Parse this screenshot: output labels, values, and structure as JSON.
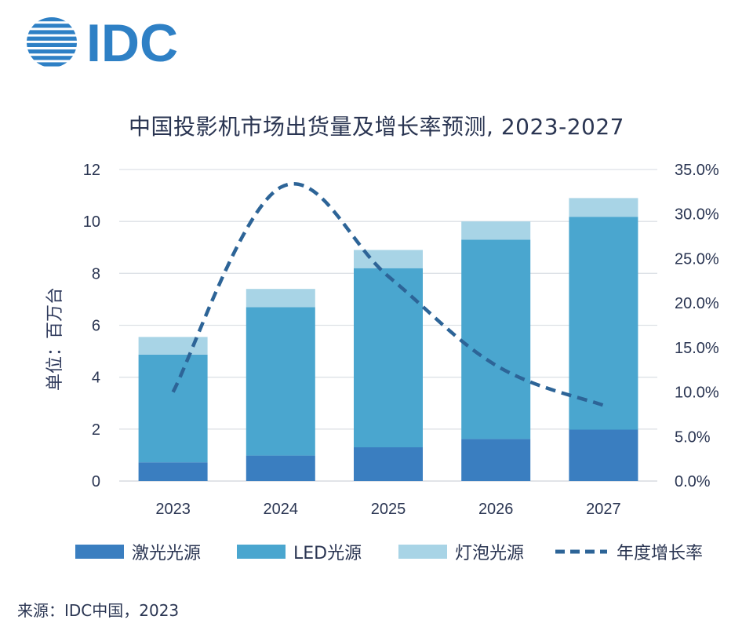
{
  "logo": {
    "text": "IDC",
    "icon": "globe-icon",
    "color": "#2e80c5"
  },
  "chart_data": {
    "type": "bar",
    "title": "中国投影机市场出货量及增长率预测, 2023-2027",
    "ylabel": "单位：百万台",
    "ylim": [
      0,
      12
    ],
    "yticks": [
      "0",
      "2",
      "4",
      "6",
      "8",
      "10",
      "12"
    ],
    "y2lim": [
      0,
      35
    ],
    "y2ticks": [
      "0.0%",
      "5.0%",
      "10.0%",
      "15.0%",
      "20.0%",
      "25.0%",
      "30.0%",
      "35.0%"
    ],
    "categories": [
      "2023",
      "2024",
      "2025",
      "2026",
      "2027"
    ],
    "stacked": true,
    "series": [
      {
        "name": "激光光源",
        "values": [
          0.72,
          0.98,
          1.3,
          1.62,
          1.98
        ],
        "color": "#3a7ec0"
      },
      {
        "name": "LED光源",
        "values": [
          4.15,
          5.72,
          6.9,
          7.68,
          8.2
        ],
        "color": "#4aa6cf"
      },
      {
        "name": "灯泡光源",
        "values": [
          0.68,
          0.7,
          0.7,
          0.7,
          0.72
        ],
        "color": "#a8d4e6"
      }
    ],
    "line_series": {
      "name": "年度增长率",
      "axis": "right",
      "style": "dashed",
      "color": "#2d6497",
      "values": [
        10.0,
        33.0,
        23.0,
        13.0,
        8.5
      ]
    },
    "grid": true,
    "legend": "bottom"
  },
  "source": "来源：IDC中国，2023"
}
